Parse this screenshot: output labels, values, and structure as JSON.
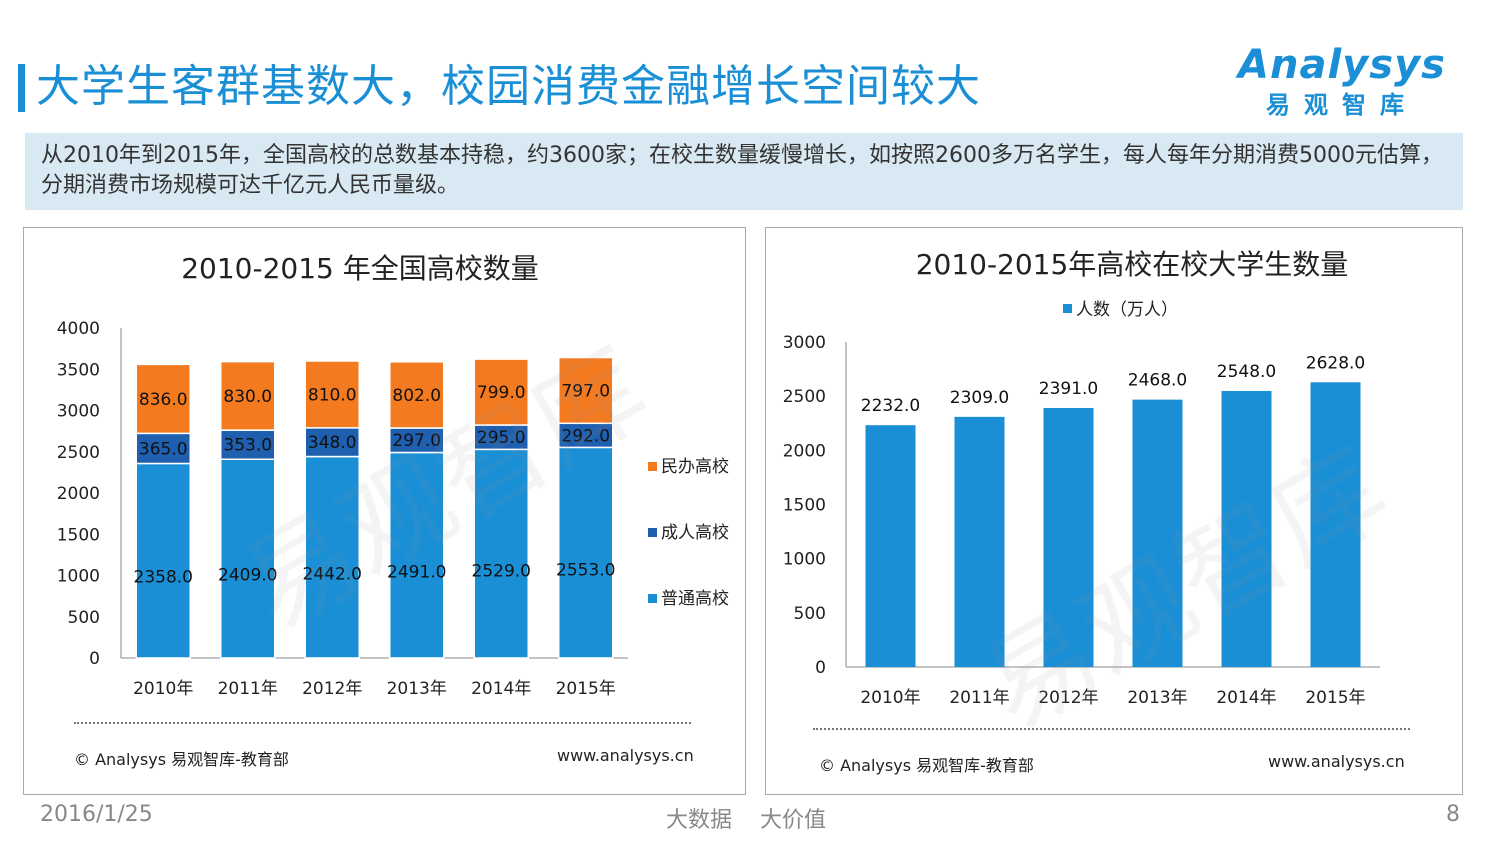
{
  "header": {
    "title": "大学生客群基数大，校园消费金融增长空间较大",
    "logo_word": "Analysys",
    "logo_cn": "易观智库"
  },
  "intro": {
    "text": "从2010年到2015年，全国高校的总数基本持稳，约3600家；在校生数量缓慢增长，如按照2600多万名学生，每人每年分期消费5000元估算，分期消费市场规模可达千亿元人民币量级。"
  },
  "watermark": "易观智库",
  "colors": {
    "accent": "#1a8fd6",
    "putong": "#1a8fd6",
    "chengren": "#1f5fb0",
    "minban": "#f47a20",
    "bar_right": "#1a8fd6"
  },
  "chart_data": [
    {
      "type": "bar",
      "stacked": true,
      "title": "2010-2015 年全国高校数量",
      "categories": [
        "2010年",
        "2011年",
        "2012年",
        "2013年",
        "2014年",
        "2015年"
      ],
      "series": [
        {
          "name": "普通高校",
          "values": [
            2358,
            2409,
            2442,
            2491,
            2529,
            2553
          ]
        },
        {
          "name": "成人高校",
          "values": [
            365,
            353,
            348,
            297,
            295,
            292
          ]
        },
        {
          "name": "民办高校",
          "values": [
            836,
            830,
            810,
            802,
            799,
            797
          ]
        }
      ],
      "ylim": [
        0,
        4000
      ],
      "yticks": [
        0,
        500,
        1000,
        1500,
        2000,
        2500,
        3000,
        3500,
        4000
      ],
      "legend": "right",
      "source": "© Analysys 易观智库-教育部",
      "site": "www.analysys.cn"
    },
    {
      "type": "bar",
      "title": "2010-2015年高校在校大学生数量",
      "categories": [
        "2010年",
        "2011年",
        "2012年",
        "2013年",
        "2014年",
        "2015年"
      ],
      "series": [
        {
          "name": "人数（万人）",
          "values": [
            2232,
            2309,
            2391,
            2468,
            2548,
            2628
          ]
        }
      ],
      "ylim": [
        0,
        3000
      ],
      "yticks": [
        0,
        500,
        1000,
        1500,
        2000,
        2500,
        3000
      ],
      "legend": "top",
      "source": "© Analysys 易观智库-教育部",
      "site": "www.analysys.cn"
    }
  ],
  "footer": {
    "date": "2016/1/25",
    "slogan": "大数据    大价值",
    "page": "8"
  }
}
